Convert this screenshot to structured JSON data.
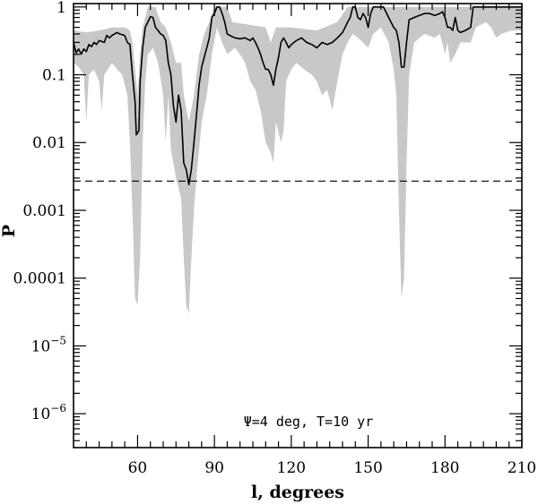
{
  "chart_data": {
    "type": "line",
    "title": "",
    "xlabel": "l, degrees",
    "ylabel": "P",
    "annotation": "Ψ=4 deg, T=10 yr",
    "xlim": [
      35,
      210
    ],
    "ylim_log10": [
      -6.5,
      0.05
    ],
    "y_scale": "log",
    "grid": false,
    "x_ticks": [
      {
        "v": 60,
        "label": "60"
      },
      {
        "v": 90,
        "label": "90"
      },
      {
        "v": 120,
        "label": "120"
      },
      {
        "v": 150,
        "label": "150"
      },
      {
        "v": 180,
        "label": "180"
      },
      {
        "v": 210,
        "label": "210"
      }
    ],
    "y_ticks": [
      {
        "exp": 0,
        "label": "1"
      },
      {
        "exp": -1,
        "label": "0.1"
      },
      {
        "exp": -2,
        "label": "0.01"
      },
      {
        "exp": -3,
        "label": "0.001"
      },
      {
        "exp": -4,
        "label": "0.0001"
      },
      {
        "exp": -5,
        "label": "10",
        "sup": "−5"
      },
      {
        "exp": -6,
        "label": "10",
        "sup": "−6"
      }
    ],
    "threshold_line": {
      "value": 0.0027,
      "style": "dashed"
    },
    "band_color": "#c8c8c8",
    "line_color": "#000000",
    "series": [
      {
        "kind": "line",
        "points": [
          [
            35,
            0.3
          ],
          [
            36,
            0.21
          ],
          [
            37,
            0.24
          ],
          [
            38,
            0.2
          ],
          [
            39,
            0.24
          ],
          [
            40,
            0.22
          ],
          [
            41,
            0.28
          ],
          [
            42,
            0.26
          ],
          [
            43,
            0.3
          ],
          [
            44,
            0.28
          ],
          [
            45,
            0.32
          ],
          [
            47,
            0.3
          ],
          [
            48,
            0.38
          ],
          [
            49,
            0.35
          ],
          [
            50,
            0.38
          ],
          [
            51,
            0.4
          ],
          [
            52,
            0.42
          ],
          [
            53,
            0.4
          ],
          [
            55,
            0.38
          ],
          [
            56,
            0.3
          ],
          [
            57,
            0.28
          ],
          [
            58,
            0.1
          ],
          [
            59,
            0.04
          ],
          [
            59.5,
            0.013
          ],
          [
            60.5,
            0.015
          ],
          [
            61,
            0.08
          ],
          [
            62,
            0.25
          ],
          [
            63,
            0.5
          ],
          [
            64,
            0.6
          ],
          [
            65,
            0.72
          ],
          [
            66,
            0.7
          ],
          [
            67,
            0.5
          ],
          [
            68,
            0.45
          ],
          [
            69,
            0.4
          ],
          [
            70,
            0.38
          ],
          [
            71,
            0.32
          ],
          [
            72,
            0.15
          ],
          [
            73,
            0.1
          ],
          [
            74,
            0.035
          ],
          [
            75,
            0.02
          ],
          [
            76,
            0.05
          ],
          [
            77,
            0.03
          ],
          [
            78,
            0.005
          ],
          [
            79,
            0.004
          ],
          [
            80,
            0.0024
          ],
          [
            81,
            0.004
          ],
          [
            82,
            0.01
          ],
          [
            83,
            0.025
          ],
          [
            84,
            0.07
          ],
          [
            85,
            0.13
          ],
          [
            86,
            0.18
          ],
          [
            87,
            0.25
          ],
          [
            88,
            0.35
          ],
          [
            89,
            0.7
          ],
          [
            90,
            0.8
          ],
          [
            91,
            1.0
          ],
          [
            92,
            1.0
          ],
          [
            93,
            0.8
          ],
          [
            94,
            0.6
          ],
          [
            95,
            0.4
          ],
          [
            96,
            0.38
          ],
          [
            98,
            0.35
          ],
          [
            100,
            0.34
          ],
          [
            102,
            0.35
          ],
          [
            104,
            0.32
          ],
          [
            105,
            0.35
          ],
          [
            106,
            0.3
          ],
          [
            107,
            0.25
          ],
          [
            108,
            0.2
          ],
          [
            109,
            0.15
          ],
          [
            110,
            0.12
          ],
          [
            111,
            0.12
          ],
          [
            112,
            0.1
          ],
          [
            113,
            0.07
          ],
          [
            114,
            0.12
          ],
          [
            115,
            0.18
          ],
          [
            116,
            0.3
          ],
          [
            117,
            0.35
          ],
          [
            118,
            0.3
          ],
          [
            119,
            0.25
          ],
          [
            120,
            0.28
          ],
          [
            122,
            0.32
          ],
          [
            124,
            0.35
          ],
          [
            126,
            0.3
          ],
          [
            128,
            0.28
          ],
          [
            130,
            0.25
          ],
          [
            132,
            0.3
          ],
          [
            134,
            0.28
          ],
          [
            136,
            0.3
          ],
          [
            138,
            0.35
          ],
          [
            140,
            0.42
          ],
          [
            141,
            0.5
          ],
          [
            142,
            0.6
          ],
          [
            143,
            0.7
          ],
          [
            144,
            1.0
          ],
          [
            145,
            1.0
          ],
          [
            146,
            0.7
          ],
          [
            147,
            0.65
          ],
          [
            148,
            0.8
          ],
          [
            149,
            0.7
          ],
          [
            150,
            0.5
          ],
          [
            151,
            0.8
          ],
          [
            152,
            1.0
          ],
          [
            156,
            1.0
          ],
          [
            158,
            0.7
          ],
          [
            160,
            0.5
          ],
          [
            161,
            0.45
          ],
          [
            162,
            0.3
          ],
          [
            163,
            0.13
          ],
          [
            164,
            0.13
          ],
          [
            165,
            0.3
          ],
          [
            166,
            0.65
          ],
          [
            168,
            0.7
          ],
          [
            170,
            0.75
          ],
          [
            172,
            0.8
          ],
          [
            174,
            0.8
          ],
          [
            176,
            0.75
          ],
          [
            178,
            0.8
          ],
          [
            179,
            0.85
          ],
          [
            180,
            0.7
          ],
          [
            181,
            0.5
          ],
          [
            182,
            0.5
          ],
          [
            183,
            0.45
          ],
          [
            184,
            0.7
          ],
          [
            185,
            0.45
          ],
          [
            186,
            0.42
          ],
          [
            188,
            0.45
          ],
          [
            190,
            0.5
          ],
          [
            191,
            1.0
          ],
          [
            210,
            1.0
          ]
        ]
      },
      {
        "kind": "band",
        "upper": [
          [
            35,
            0.45
          ],
          [
            40,
            0.42
          ],
          [
            45,
            0.45
          ],
          [
            50,
            0.5
          ],
          [
            55,
            0.5
          ],
          [
            57,
            0.45
          ],
          [
            58,
            0.3
          ],
          [
            60,
            0.05
          ],
          [
            61,
            0.2
          ],
          [
            62,
            0.5
          ],
          [
            64,
            1.0
          ],
          [
            67,
            1.0
          ],
          [
            69,
            0.6
          ],
          [
            71,
            0.5
          ],
          [
            73,
            0.3
          ],
          [
            75,
            0.15
          ],
          [
            77,
            0.15
          ],
          [
            78,
            0.05
          ],
          [
            80,
            0.02
          ],
          [
            82,
            0.05
          ],
          [
            84,
            0.2
          ],
          [
            86,
            0.4
          ],
          [
            88,
            0.6
          ],
          [
            90,
            1.0
          ],
          [
            95,
            1.0
          ],
          [
            97,
            0.6
          ],
          [
            110,
            0.5
          ],
          [
            112,
            0.3
          ],
          [
            114,
            0.5
          ],
          [
            120,
            0.5
          ],
          [
            130,
            0.45
          ],
          [
            138,
            0.6
          ],
          [
            142,
            1.0
          ],
          [
            210,
            1.0
          ]
        ],
        "lower": [
          [
            35,
            0.15
          ],
          [
            37,
            0.13
          ],
          [
            39,
            0.1
          ],
          [
            40,
            0.02
          ],
          [
            41,
            0.1
          ],
          [
            43,
            0.12
          ],
          [
            45,
            0.08
          ],
          [
            46,
            0.03
          ],
          [
            47,
            0.1
          ],
          [
            50,
            0.15
          ],
          [
            52,
            0.12
          ],
          [
            54,
            0.1
          ],
          [
            56,
            0.05
          ],
          [
            57,
            0.01
          ],
          [
            58,
            0.001
          ],
          [
            59,
            5e-05
          ],
          [
            60,
            4e-05
          ],
          [
            61,
            0.0002
          ],
          [
            62,
            0.01
          ],
          [
            63,
            0.08
          ],
          [
            64,
            0.2
          ],
          [
            66,
            0.25
          ],
          [
            68,
            0.15
          ],
          [
            70,
            0.05
          ],
          [
            71,
            0.01
          ],
          [
            72,
            0.05
          ],
          [
            73,
            0.008
          ],
          [
            75,
            0.003
          ],
          [
            77,
            0.0015
          ],
          [
            78,
            0.0002
          ],
          [
            79,
            4e-05
          ],
          [
            80,
            3e-05
          ],
          [
            81,
            0.0002
          ],
          [
            82,
            0.001
          ],
          [
            83,
            0.003
          ],
          [
            85,
            0.02
          ],
          [
            87,
            0.05
          ],
          [
            89,
            0.2
          ],
          [
            91,
            0.5
          ],
          [
            93,
            0.3
          ],
          [
            95,
            0.2
          ],
          [
            98,
            0.25
          ],
          [
            100,
            0.2
          ],
          [
            102,
            0.15
          ],
          [
            104,
            0.08
          ],
          [
            106,
            0.06
          ],
          [
            108,
            0.03
          ],
          [
            110,
            0.01
          ],
          [
            112,
            0.007
          ],
          [
            113,
            0.005
          ],
          [
            114,
            0.02
          ],
          [
            116,
            0.01
          ],
          [
            117,
            0.015
          ],
          [
            118,
            0.08
          ],
          [
            120,
            0.12
          ],
          [
            122,
            0.15
          ],
          [
            125,
            0.12
          ],
          [
            128,
            0.1
          ],
          [
            130,
            0.08
          ],
          [
            132,
            0.05
          ],
          [
            134,
            0.06
          ],
          [
            136,
            0.03
          ],
          [
            138,
            0.08
          ],
          [
            140,
            0.2
          ],
          [
            142,
            0.3
          ],
          [
            144,
            0.4
          ],
          [
            146,
            0.35
          ],
          [
            148,
            0.3
          ],
          [
            150,
            0.25
          ],
          [
            152,
            0.4
          ],
          [
            155,
            0.5
          ],
          [
            158,
            0.3
          ],
          [
            160,
            0.12
          ],
          [
            161,
            0.05
          ],
          [
            162,
            0.001
          ],
          [
            163,
            5e-05
          ],
          [
            164,
            0.0001
          ],
          [
            165,
            0.005
          ],
          [
            166,
            0.1
          ],
          [
            168,
            0.3
          ],
          [
            172,
            0.4
          ],
          [
            176,
            0.35
          ],
          [
            178,
            0.4
          ],
          [
            180,
            0.2
          ],
          [
            181,
            0.3
          ],
          [
            182,
            0.15
          ],
          [
            184,
            0.2
          ],
          [
            186,
            0.3
          ],
          [
            188,
            0.3
          ],
          [
            190,
            0.3
          ],
          [
            192,
            0.5
          ],
          [
            196,
            0.6
          ],
          [
            198,
            0.5
          ],
          [
            200,
            0.35
          ],
          [
            202,
            0.4
          ],
          [
            206,
            0.45
          ],
          [
            210,
            0.45
          ]
        ]
      }
    ]
  }
}
